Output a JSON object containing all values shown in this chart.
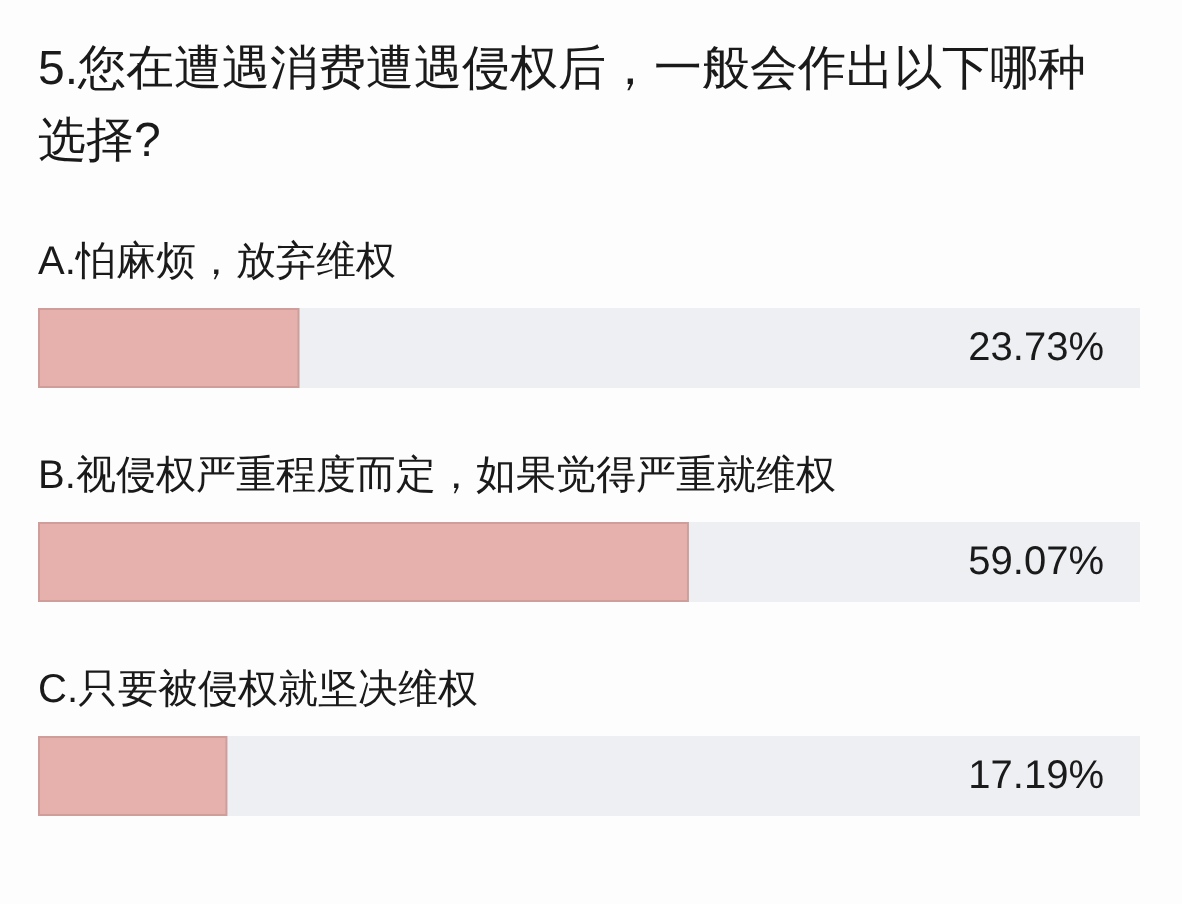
{
  "chart_data": {
    "type": "bar",
    "orientation": "horizontal",
    "title": "5.您在遭遇消费遭遇侵权后，一般会作出以下哪种选择?",
    "categories": [
      "A.怕麻烦，放弃维权",
      "B.视侵权严重程度而定，如果觉得严重就维权",
      "C.只要被侵权就坚决维权"
    ],
    "color": "#e6b0ac",
    "values": [
      23.73,
      59.07,
      17.19
    ],
    "value_labels": [
      "23.73%",
      "59.07%",
      "17.19%"
    ],
    "xlim": [
      0,
      100
    ],
    "tick_labels": false
  }
}
